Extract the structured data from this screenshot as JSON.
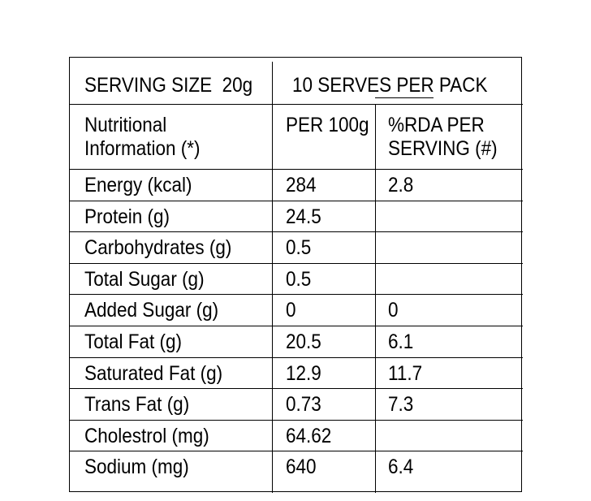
{
  "header": {
    "serving_size": "SERVING SIZE  20g",
    "serves_per_pack": "10 SERVES PER PACK"
  },
  "columns": {
    "nutrient": [
      "Nutritional",
      "Information (*)"
    ],
    "per_100g": "PER 100g",
    "rda": [
      "%RDA PER",
      "SERVING (#)"
    ]
  },
  "rows": [
    {
      "nutrient": "Energy (kcal)",
      "per_100g": "284",
      "rda": "2.8"
    },
    {
      "nutrient": "Protein (g)",
      "per_100g": "24.5",
      "rda": ""
    },
    {
      "nutrient": "Carbohydrates (g)",
      "per_100g": "0.5",
      "rda": ""
    },
    {
      "nutrient": "Total Sugar (g)",
      "per_100g": "0.5",
      "rda": ""
    },
    {
      "nutrient": "Added Sugar (g)",
      "per_100g": "0",
      "rda": "0"
    },
    {
      "nutrient": "Total Fat (g)",
      "per_100g": "20.5",
      "rda": "6.1"
    },
    {
      "nutrient": "Saturated Fat (g)",
      "per_100g": "12.9",
      "rda": "11.7"
    },
    {
      "nutrient": "Trans Fat (g)",
      "per_100g": "0.73",
      "rda": "7.3"
    },
    {
      "nutrient": "Cholestrol (mg)",
      "per_100g": "64.62",
      "rda": ""
    },
    {
      "nutrient": "Sodium (mg)",
      "per_100g": "640",
      "rda": "6.4"
    }
  ]
}
